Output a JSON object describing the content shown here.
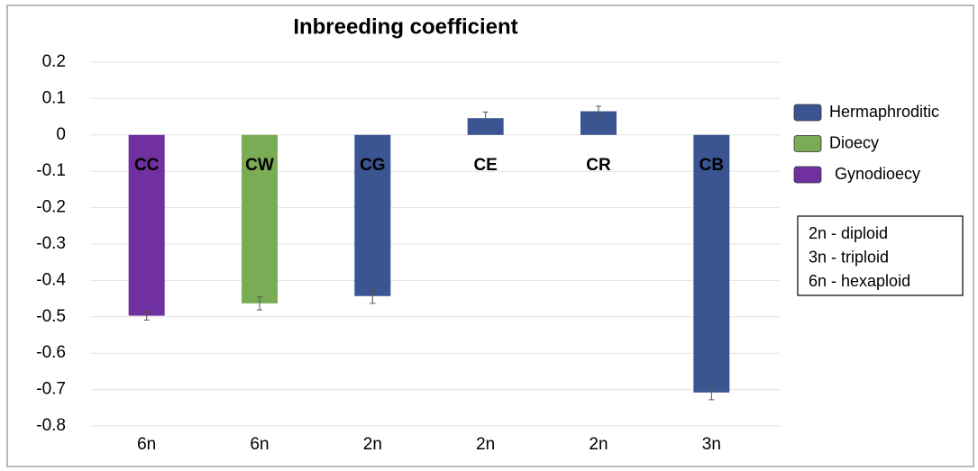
{
  "chart_data": {
    "type": "bar",
    "title": "Inbreeding coefficient",
    "categories": [
      "6n",
      "6n",
      "2n",
      "2n",
      "2n",
      "3n"
    ],
    "bar_labels": [
      "CC",
      "CW",
      "CG",
      "CE",
      "CR",
      "CB"
    ],
    "values": [
      -0.497,
      -0.463,
      -0.443,
      0.046,
      0.065,
      -0.708
    ],
    "errors": [
      0.012,
      0.018,
      0.02,
      0.017,
      0.014,
      0.02
    ],
    "colors": [
      "#7030a0",
      "#7aab55",
      "#3a5591",
      "#3a5591",
      "#3a5591",
      "#3a5591"
    ],
    "legend": [
      {
        "name": "Hermaphroditic",
        "color": "#3a5591"
      },
      {
        "name": "Dioecy",
        "color": "#7aab55"
      },
      {
        "name": "Gynodioecy",
        "color": "#7030a0"
      }
    ],
    "notes": [
      "2n - diploid",
      "3n - triploid",
      "6n - hexaploid"
    ],
    "ylim": [
      -0.8,
      0.2
    ],
    "yticks": [
      0.2,
      0.1,
      0,
      -0.1,
      -0.2,
      -0.3,
      -0.4,
      -0.5,
      -0.6,
      -0.7,
      -0.8
    ],
    "grid": true
  }
}
